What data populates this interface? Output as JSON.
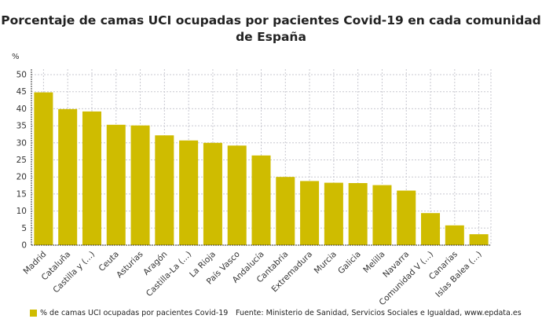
{
  "chart_data": {
    "type": "bar",
    "title": "Porcentaje de camas UCI ocupadas por pacientes Covid-19 en cada comunidad de España",
    "ylabel": "%",
    "xlabel": "",
    "ylim": [
      0,
      50
    ],
    "yticks": [
      0,
      5,
      10,
      15,
      20,
      25,
      30,
      35,
      40,
      45,
      50
    ],
    "grid": true,
    "legend_position": "bottom-left",
    "categories": [
      "Madrid",
      "Cataluña",
      "Castilla y (...)",
      "Ceuta",
      "Asturias",
      "Aragón",
      "Castilla-La (...)",
      "La Rioja",
      "País Vasco",
      "Andalucía",
      "Cantabria",
      "Extremadura",
      "Murcia",
      "Galicia",
      "Melilla",
      "Navarra",
      "Comunidad V (...)",
      "Canarias",
      "Islas Balea (...)"
    ],
    "series": [
      {
        "name": "% de camas UCI ocupadas por pacientes Covid-19",
        "color": "#cfbc00",
        "values": [
          44.8,
          39.9,
          39.2,
          35.3,
          35.1,
          32.2,
          30.7,
          30.0,
          29.2,
          26.3,
          20.0,
          18.8,
          18.3,
          18.2,
          17.6,
          16.0,
          9.4,
          5.8,
          3.2
        ]
      }
    ]
  },
  "source": "Fuente: Ministerio de Sanidad, Servicios Sociales e Igualdad, www.epdata.es"
}
